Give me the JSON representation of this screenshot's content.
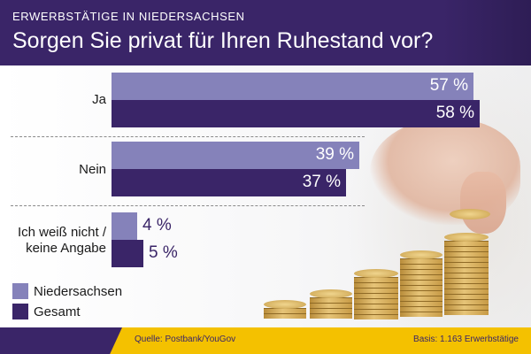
{
  "header": {
    "kicker": "ERWERBSTÄTIGE IN NIEDERSACHSEN",
    "title": "Sorgen Sie privat für Ihren Ruhestand vor?"
  },
  "chart_data": {
    "type": "bar",
    "orientation": "horizontal",
    "categories": [
      "Ja",
      "Nein",
      "Ich weiß nicht / keine Angabe"
    ],
    "category_lines": [
      [
        "Ja"
      ],
      [
        "Nein"
      ],
      [
        "Ich weiß nicht /",
        "keine Angabe"
      ]
    ],
    "series": [
      {
        "name": "Niedersachsen",
        "values": [
          57,
          39,
          4
        ],
        "labels": [
          "57 %",
          "39 %",
          "4 %"
        ],
        "color": "#8582ba"
      },
      {
        "name": "Gesamt",
        "values": [
          58,
          37,
          5
        ],
        "labels": [
          "58 %",
          "37 %",
          "5 %"
        ],
        "color": "#3a2568"
      }
    ],
    "xlim": [
      0,
      58
    ],
    "legend_position": "bottom-left",
    "grid": false
  },
  "footer": {
    "source": "Quelle: Postbank/YouGov",
    "basis": "Basis: 1.163 Erwerbstätige"
  },
  "colors": {
    "header_bg": "#3a2568",
    "footer_bg": "#f4c100",
    "series_light": "#8582ba",
    "series_dark": "#3a2568"
  }
}
